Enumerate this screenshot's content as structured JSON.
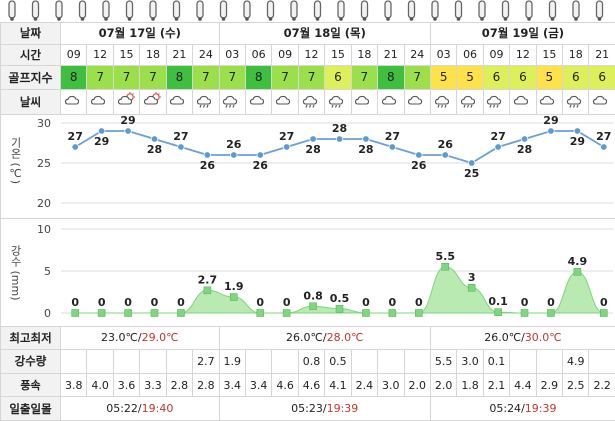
{
  "labels": {
    "date": "날짜",
    "time": "시간",
    "golf": "골프지수",
    "weather": "날씨",
    "temp_axis": "기온 (℃)",
    "rain_axis": "강수 (mm)",
    "minmax": "최고최저",
    "rain_amount": "강수량",
    "wind": "풍속",
    "sun": "일출일몰"
  },
  "days": [
    {
      "date": "07월 17일 (수)",
      "min": "23.0℃",
      "max": "29.0℃",
      "sunrise": "05:22",
      "sunset": "19:40"
    },
    {
      "date": "07월 18일 (목)",
      "min": "26.0℃",
      "max": "28.0℃",
      "sunrise": "05:23",
      "sunset": "19:39"
    },
    {
      "date": "07월 19일 (금)",
      "min": "26.0℃",
      "max": "30.0℃",
      "sunrise": "05:24",
      "sunset": "19:39"
    }
  ],
  "slots": [
    {
      "time": "09",
      "golf": "8",
      "golf_color": "#3fbf3f",
      "icon": "cloudy-icon",
      "temp": 27,
      "rain": 0,
      "amt": "",
      "wind": "3.8"
    },
    {
      "time": "12",
      "golf": "7",
      "golf_color": "#9be04a",
      "icon": "cloudy-icon",
      "temp": 29,
      "rain": 0,
      "amt": "",
      "wind": "4.0"
    },
    {
      "time": "15",
      "golf": "7",
      "golf_color": "#9be04a",
      "icon": "partly-cloudy-icon",
      "temp": 29,
      "rain": 0,
      "amt": "",
      "wind": "3.6"
    },
    {
      "time": "18",
      "golf": "7",
      "golf_color": "#9be04a",
      "icon": "partly-cloudy-icon",
      "temp": 28,
      "rain": 0,
      "amt": "",
      "wind": "3.3"
    },
    {
      "time": "21",
      "golf": "8",
      "golf_color": "#3fbf3f",
      "icon": "cloudy-icon",
      "temp": 27,
      "rain": 0,
      "amt": "",
      "wind": "2.8"
    },
    {
      "time": "24",
      "golf": "7",
      "golf_color": "#9be04a",
      "icon": "rain-icon",
      "temp": 26,
      "rain": 2.7,
      "amt": "2.7",
      "wind": "2.8"
    },
    {
      "time": "03",
      "golf": "7",
      "golf_color": "#9be04a",
      "icon": "rain-icon",
      "temp": 26,
      "rain": 1.9,
      "amt": "1.9",
      "wind": "3.4"
    },
    {
      "time": "06",
      "golf": "8",
      "golf_color": "#3fbf3f",
      "icon": "cloudy-icon",
      "temp": 26,
      "rain": 0,
      "amt": "",
      "wind": "3.4"
    },
    {
      "time": "09",
      "golf": "7",
      "golf_color": "#9be04a",
      "icon": "cloudy-icon",
      "temp": 27,
      "rain": 0,
      "amt": "",
      "wind": "4.6"
    },
    {
      "time": "12",
      "golf": "7",
      "golf_color": "#9be04a",
      "icon": "rain-icon",
      "temp": 28,
      "rain": 0.8,
      "amt": "0.8",
      "wind": "4.6"
    },
    {
      "time": "15",
      "golf": "6",
      "golf_color": "#ddf05a",
      "icon": "rain-icon",
      "temp": 28,
      "rain": 0.5,
      "amt": "0.5",
      "wind": "4.1"
    },
    {
      "time": "18",
      "golf": "7",
      "golf_color": "#9be04a",
      "icon": "cloudy-icon",
      "temp": 28,
      "rain": 0,
      "amt": "",
      "wind": "2.4"
    },
    {
      "time": "21",
      "golf": "8",
      "golf_color": "#3fbf3f",
      "icon": "cloudy-icon",
      "temp": 27,
      "rain": 0,
      "amt": "",
      "wind": "3.0"
    },
    {
      "time": "24",
      "golf": "7",
      "golf_color": "#9be04a",
      "icon": "cloudy-icon",
      "temp": 26,
      "rain": 0,
      "amt": "",
      "wind": "2.0"
    },
    {
      "time": "03",
      "golf": "5",
      "golf_color": "#ffe24a",
      "icon": "rain-icon",
      "temp": 26,
      "rain": 5.5,
      "amt": "5.5",
      "wind": "2.0"
    },
    {
      "time": "06",
      "golf": "5",
      "golf_color": "#ffe24a",
      "icon": "rain-icon",
      "temp": 25,
      "rain": 3,
      "amt": "3.0",
      "wind": "1.8"
    },
    {
      "time": "09",
      "golf": "6",
      "golf_color": "#ddf05a",
      "icon": "rain-icon",
      "temp": 27,
      "rain": 0.1,
      "amt": "0.1",
      "wind": "2.1"
    },
    {
      "time": "12",
      "golf": "6",
      "golf_color": "#ddf05a",
      "icon": "cloudy-icon",
      "temp": 28,
      "rain": 0,
      "amt": "",
      "wind": "4.4"
    },
    {
      "time": "15",
      "golf": "5",
      "golf_color": "#ffe24a",
      "icon": "cloudy-icon",
      "temp": 29,
      "rain": 0,
      "amt": "",
      "wind": "2.9"
    },
    {
      "time": "18",
      "golf": "6",
      "golf_color": "#ddf05a",
      "icon": "rain-icon",
      "temp": 29,
      "rain": 4.9,
      "amt": "4.9",
      "wind": "2.5"
    },
    {
      "time": "21",
      "golf": "6",
      "golf_color": "#ddf05a",
      "icon": "cloudy-icon",
      "temp": 27,
      "rain": 0,
      "amt": "",
      "wind": "2.2"
    }
  ],
  "chart_data": [
    {
      "type": "line",
      "ylabel": "기온 (℃)",
      "ylim": [
        20,
        30
      ],
      "yticks": [
        20,
        25,
        30
      ],
      "grid": true,
      "categories": [
        "09",
        "12",
        "15",
        "18",
        "21",
        "24",
        "03",
        "06",
        "09",
        "12",
        "15",
        "18",
        "21",
        "24",
        "03",
        "06",
        "09",
        "12",
        "15",
        "18",
        "21"
      ],
      "series": [
        {
          "values": [
            27,
            29,
            29,
            28,
            27,
            26,
            26,
            26,
            27,
            28,
            28,
            28,
            27,
            26,
            26,
            25,
            27,
            28,
            29,
            29,
            27
          ]
        }
      ],
      "color": "#5b9bd5"
    },
    {
      "type": "area",
      "ylabel": "강수 (mm)",
      "ylim": [
        0,
        10
      ],
      "yticks": [
        0,
        5,
        10
      ],
      "grid": true,
      "categories": [
        "09",
        "12",
        "15",
        "18",
        "21",
        "24",
        "03",
        "06",
        "09",
        "12",
        "15",
        "18",
        "21",
        "24",
        "03",
        "06",
        "09",
        "12",
        "15",
        "18",
        "21"
      ],
      "series": [
        {
          "values": [
            0,
            0,
            0,
            0,
            0,
            2.7,
            1.9,
            0,
            0,
            0.8,
            0.5,
            0,
            0,
            0,
            5.5,
            3,
            0.1,
            0,
            0,
            4.9,
            0
          ]
        }
      ],
      "color": "#7ed67e"
    }
  ]
}
